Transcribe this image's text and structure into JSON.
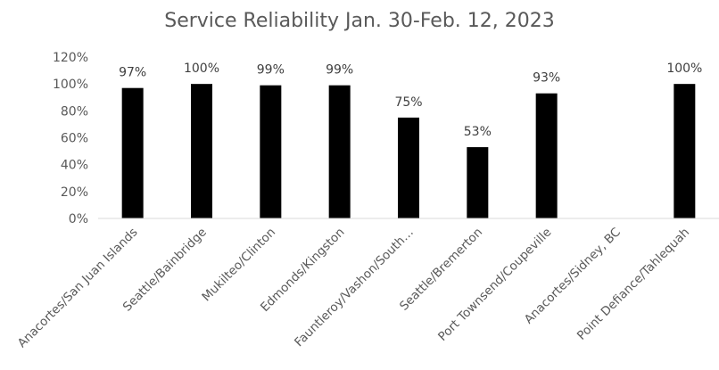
{
  "chart_data": {
    "type": "bar",
    "title": "Service Reliability Jan. 30-Feb. 12, 2023",
    "categories": [
      "Anacortes/San Juan Islands",
      "Seattle/Bainbridge",
      "Mukilteo/Clinton",
      "Edmonds/Kingston",
      "Fauntleroy/Vashon/South…",
      "Seattle/Bremerton",
      "Port Townsend/Coupeville",
      "Anacortes/Sidney, BC",
      "Point Defiance/Tahlequah"
    ],
    "values": [
      97,
      100,
      99,
      99,
      75,
      53,
      93,
      null,
      100
    ],
    "data_labels": [
      "97%",
      "100%",
      "99%",
      "99%",
      "75%",
      "53%",
      "93%",
      "",
      "100%"
    ],
    "y_ticks": [
      "0%",
      "20%",
      "40%",
      "60%",
      "80%",
      "100%",
      "120%"
    ],
    "ylim": [
      0,
      120
    ],
    "grid": false,
    "legend": "none",
    "bar_color": "#000000",
    "axis_color": "#d9d9d9"
  }
}
